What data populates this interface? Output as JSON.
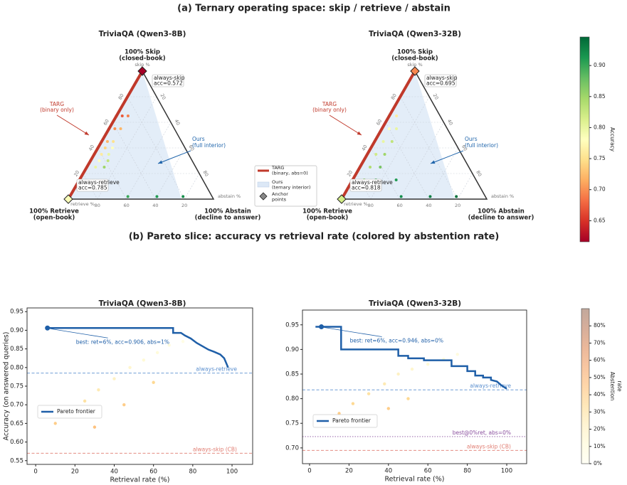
{
  "figure_titles": [
    "(a)  Ternary operating space: skip / retrieve / abstain",
    "(b)  Pareto slice: accuracy vs retrieval rate (colored by abstention rate)"
  ],
  "ternary_legend": {
    "entries": [
      [
        "TARG",
        "(binary, abs=0)"
      ],
      [
        "Ours",
        "(ternary interior)"
      ],
      [
        "Anchor",
        "points"
      ]
    ]
  },
  "chart_data": [
    {
      "type": "ternary",
      "title": "TriviaQA (Qwen3-8B)",
      "corners": {
        "skip": [
          "100% Skip",
          "(closed-book)"
        ],
        "retrieve": [
          "100% Retrieve",
          "(open-book)"
        ],
        "abstain": [
          "100% Abstain",
          "(decline to answer)"
        ]
      },
      "axis_labels": {
        "skip": "skip %",
        "retrieve": "retrieve %",
        "abstain": "abstain %"
      },
      "ticks": [
        20,
        40,
        60,
        80
      ],
      "grid": true,
      "anchors": {
        "names": [
          "always-skip",
          "always-retrieve"
        ],
        "values": [
          0.572,
          0.785
        ],
        "value_labels": [
          "acc=0.572",
          "acc=0.785"
        ]
      },
      "annotations": {
        "targ": [
          "TARG",
          "(binary only)"
        ],
        "ours": [
          "Ours",
          "(full interior)"
        ]
      },
      "targ_color": "#c0392b",
      "ours_color": "#2166ac",
      "region_color": "#dce8f6",
      "points": [
        [
          65,
          0,
          0.65
        ],
        [
          65,
          4,
          0.67
        ],
        [
          65,
          8,
          0.69
        ],
        [
          55,
          0,
          0.67
        ],
        [
          55,
          4,
          0.7
        ],
        [
          55,
          8,
          0.72
        ],
        [
          45,
          0,
          0.69
        ],
        [
          45,
          4,
          0.72
        ],
        [
          45,
          8,
          0.75
        ],
        [
          40,
          0,
          0.7
        ],
        [
          40,
          5,
          0.74
        ],
        [
          40,
          10,
          0.78
        ],
        [
          35,
          0,
          0.71
        ],
        [
          35,
          5,
          0.76
        ],
        [
          35,
          10,
          0.8
        ],
        [
          30,
          0,
          0.72
        ],
        [
          30,
          6,
          0.78
        ],
        [
          30,
          12,
          0.83
        ],
        [
          25,
          0,
          0.73
        ],
        [
          25,
          6,
          0.8
        ],
        [
          25,
          12,
          0.85
        ],
        [
          2,
          40,
          0.9
        ],
        [
          2,
          60,
          0.91
        ],
        [
          2,
          78,
          0.92
        ]
      ]
    },
    {
      "type": "ternary",
      "title": "TriviaQA (Qwen3-32B)",
      "corners": {
        "skip": [
          "100% Skip",
          "(closed-book)"
        ],
        "retrieve": [
          "100% Retrieve",
          "(open-book)"
        ],
        "abstain": [
          "100% Abstain",
          "(decline to answer)"
        ]
      },
      "axis_labels": {
        "skip": "skip %",
        "retrieve": "retrieve %",
        "abstain": "abstain %"
      },
      "ticks": [
        20,
        40,
        60,
        80
      ],
      "grid": true,
      "anchors": {
        "names": [
          "always-skip",
          "always-retrieve"
        ],
        "values": [
          0.695,
          0.818
        ],
        "value_labels": [
          "acc=0.695",
          "acc=0.818"
        ]
      },
      "annotations": {
        "targ": [
          "TARG",
          "(binary only)"
        ],
        "ours": [
          "Ours",
          "(full interior)"
        ]
      },
      "targ_color": "#c0392b",
      "ours_color": "#2166ac",
      "region_color": "#dce8f6",
      "points": [
        [
          65,
          0,
          0.73
        ],
        [
          65,
          5,
          0.76
        ],
        [
          55,
          0,
          0.75
        ],
        [
          55,
          5,
          0.78
        ],
        [
          55,
          10,
          0.8
        ],
        [
          45,
          0,
          0.76
        ],
        [
          45,
          6,
          0.8
        ],
        [
          45,
          12,
          0.83
        ],
        [
          35,
          0,
          0.78
        ],
        [
          35,
          6,
          0.82
        ],
        [
          35,
          12,
          0.85
        ],
        [
          25,
          0,
          0.79
        ],
        [
          25,
          7,
          0.84
        ],
        [
          25,
          14,
          0.87
        ],
        [
          15,
          0,
          0.8
        ],
        [
          15,
          8,
          0.86
        ],
        [
          15,
          16,
          0.89
        ],
        [
          15,
          30,
          0.91
        ],
        [
          2,
          40,
          0.92
        ],
        [
          2,
          60,
          0.93
        ],
        [
          2,
          78,
          0.94
        ]
      ]
    },
    {
      "type": "line",
      "title": "TriviaQA (Qwen3-8B)",
      "xlabel": "Retrieval rate (%)",
      "ylabel": "Accuracy (on answered queries)",
      "xlim": [
        -4.4,
        110.5
      ],
      "ylim": [
        0.54,
        0.96
      ],
      "xticks": [
        0,
        20,
        40,
        60,
        80,
        100
      ],
      "yticks": [
        0.55,
        {
          "value": 0.6,
          "label": "0.60"
        },
        0.65,
        {
          "value": 0.7,
          "label": "0.70"
        },
        0.75,
        {
          "value": 0.8,
          "label": "0.80"
        },
        0.85,
        {
          "value": 0.9,
          "label": "0.90"
        },
        0.95
      ],
      "series": [
        {
          "name": "Pareto frontier",
          "color": "#1f5fa8",
          "x": [
            6,
            70,
            70,
            74,
            76,
            79,
            82,
            85,
            88,
            91,
            94,
            96,
            98
          ],
          "values": [
            0.906,
            0.906,
            0.893,
            0.893,
            0.886,
            0.878,
            0.866,
            0.857,
            0.848,
            0.842,
            0.835,
            0.825,
            0.8
          ]
        }
      ],
      "cloud": {
        "x": [
          10,
          18,
          25,
          32,
          40,
          48,
          55,
          62,
          68,
          75,
          30,
          45,
          60
        ],
        "values": [
          0.65,
          0.68,
          0.71,
          0.74,
          0.77,
          0.8,
          0.82,
          0.84,
          0.86,
          0.87,
          0.64,
          0.7,
          0.76
        ],
        "abstention": [
          40,
          35,
          30,
          25,
          20,
          15,
          12,
          10,
          8,
          5,
          45,
          40,
          35
        ]
      },
      "best": {
        "x": 6,
        "value": 0.906,
        "label": "best: ret=6%, acc=0.906, abs=1%"
      },
      "reference_lines": [
        {
          "name": "always-retrieve",
          "value": 0.785,
          "color": "#5b8fcf",
          "style": "dashed"
        },
        {
          "name": "always-skip (CB)",
          "value": 0.57,
          "color": "#e07b70",
          "style": "dashed"
        }
      ]
    },
    {
      "type": "line",
      "title": "TriviaQA (Qwen3-32B)",
      "xlabel": "Retrieval rate (%)",
      "xlim": [
        -3.6,
        110.1
      ],
      "ylim": [
        0.668,
        0.98
      ],
      "xticks": [
        0,
        20,
        40,
        60,
        80,
        100
      ],
      "yticks": [
        {
          "value": 0.7,
          "label": "0.70"
        },
        0.75,
        {
          "value": 0.8,
          "label": "0.80"
        },
        0.85,
        {
          "value": 0.9,
          "label": "0.90"
        },
        0.95
      ],
      "series": [
        {
          "name": "Pareto frontier",
          "color": "#1f5fa8",
          "x": [
            3,
            16,
            16,
            45,
            45,
            50,
            50,
            58,
            58,
            72,
            72,
            80,
            80,
            84,
            84,
            88,
            88,
            92,
            92,
            95,
            97,
            100
          ],
          "values": [
            0.946,
            0.946,
            0.9,
            0.9,
            0.887,
            0.887,
            0.882,
            0.882,
            0.878,
            0.878,
            0.866,
            0.866,
            0.856,
            0.856,
            0.847,
            0.847,
            0.843,
            0.843,
            0.838,
            0.835,
            0.828,
            0.82
          ]
        }
      ],
      "cloud": {
        "x": [
          15,
          22,
          30,
          38,
          45,
          52,
          60,
          68,
          75,
          30,
          40,
          50
        ],
        "values": [
          0.77,
          0.79,
          0.81,
          0.83,
          0.85,
          0.86,
          0.87,
          0.88,
          0.89,
          0.75,
          0.78,
          0.8
        ],
        "abstention": [
          40,
          35,
          30,
          25,
          20,
          15,
          12,
          10,
          8,
          45,
          40,
          35
        ]
      },
      "best": {
        "x": 6,
        "value": 0.946,
        "label": "best: ret=6%, acc=0.946, abs=0%"
      },
      "reference_lines": [
        {
          "name": "always-retrieve",
          "value": 0.818,
          "color": "#5b8fcf",
          "style": "dashed"
        },
        {
          "name": "best@0%ret, abs=0%",
          "value": 0.723,
          "color": "#8a4f9e",
          "style": "dotted"
        },
        {
          "name": "always-skip (CB)",
          "value": 0.695,
          "color": "#e07b70",
          "style": "dashed"
        }
      ]
    },
    {
      "type": "colorbar",
      "label": [
        "Accuracy"
      ],
      "colormap": "RdYlGn",
      "opacity": 1,
      "ylim": [
        0.616,
        0.946
      ],
      "yticks": [
        0.65,
        {
          "value": 0.7,
          "label": "0.70"
        },
        0.75,
        {
          "value": 0.8,
          "label": "0.80"
        },
        0.85,
        {
          "value": 0.9,
          "label": "0.90"
        }
      ]
    },
    {
      "type": "colorbar",
      "label": [
        "Abstention",
        "rate"
      ],
      "colormap": "YlOrBr",
      "opacity": 0.4,
      "ylim": [
        0,
        90
      ],
      "yticks": [
        {
          "value": 0,
          "label": "0%"
        },
        {
          "value": 10,
          "label": "10%"
        },
        {
          "value": 20,
          "label": "20%"
        },
        {
          "value": 30,
          "label": "30%"
        },
        {
          "value": 40,
          "label": "40%"
        },
        {
          "value": 50,
          "label": "50%"
        },
        {
          "value": 60,
          "label": "60%"
        },
        {
          "value": 70,
          "label": "70%"
        },
        {
          "value": 80,
          "label": "80%"
        }
      ]
    }
  ]
}
